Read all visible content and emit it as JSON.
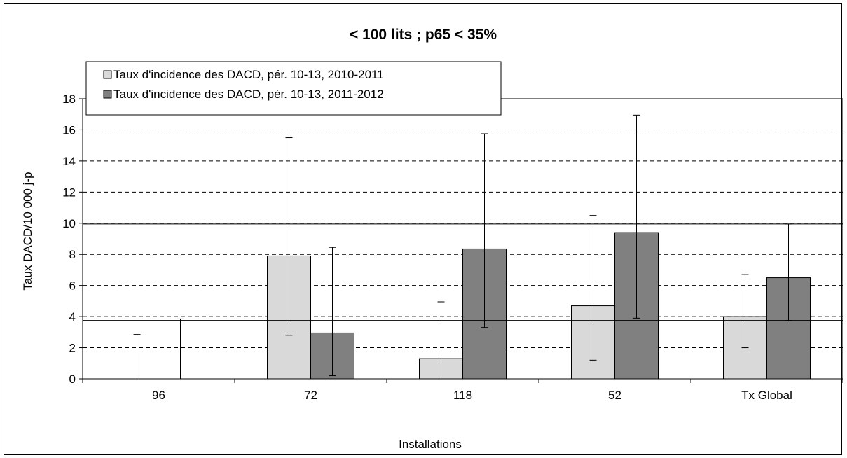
{
  "chart_data": {
    "type": "bar",
    "title": "< 100 lits ; p65 < 35%",
    "xlabel": "Installations",
    "ylabel": "Taux DACD/10 000 j-p",
    "ylim": [
      0,
      18
    ],
    "yticks": [
      0,
      2,
      4,
      6,
      8,
      10,
      12,
      14,
      16,
      18
    ],
    "grid": "dashed horizontal",
    "legend_position": "top-left",
    "categories": [
      "96",
      "72",
      "118",
      "52",
      "Tx Global"
    ],
    "series": [
      {
        "name": "Taux d'incidence des DACD, pér. 10-13,  2010-2011",
        "color": "#d9d9d9",
        "values": [
          0,
          7.9,
          1.3,
          4.7,
          4.0
        ],
        "error_low": [
          0,
          2.8,
          0,
          1.2,
          2.0
        ],
        "error_high": [
          2.85,
          15.5,
          4.95,
          10.5,
          6.7
        ]
      },
      {
        "name": "Taux d'incidence des DACD, pér. 10-13,  2011-2012",
        "color": "#808080",
        "values": [
          0,
          2.95,
          8.35,
          9.4,
          6.5
        ],
        "error_low": [
          0,
          0.2,
          3.3,
          3.9,
          3.75
        ],
        "error_high": [
          3.85,
          8.45,
          15.75,
          16.95,
          9.95
        ]
      }
    ],
    "reference_lines": [
      {
        "value": 9.95,
        "style": "solid"
      },
      {
        "value": 3.75,
        "style": "solid"
      }
    ]
  }
}
